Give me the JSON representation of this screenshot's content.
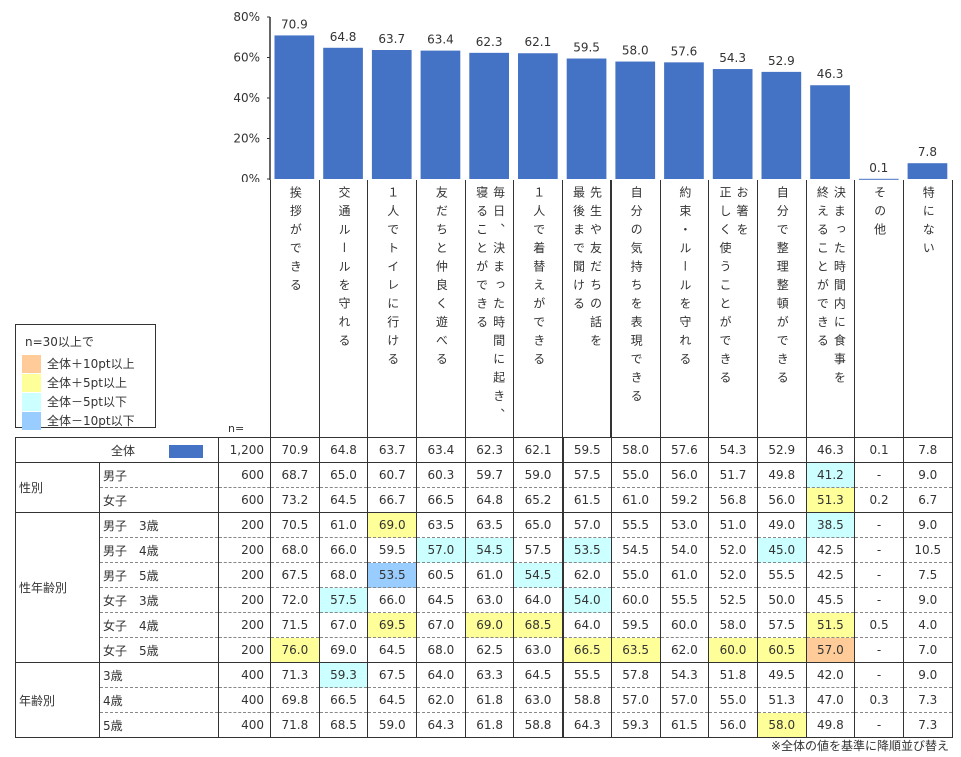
{
  "colors": {
    "bar": "#4472C4",
    "plus10": "#FFCC99",
    "plus5": "#FFFF99",
    "minus5": "#CCFFFF",
    "minus10": "#99CCFF"
  },
  "legend": {
    "title": "n=30以上で",
    "items": [
      {
        "label": "全体＋10pt以上",
        "key": "o"
      },
      {
        "label": "全体＋5pt以上",
        "key": "y"
      },
      {
        "label": "全体－5pt以下",
        "key": "c"
      },
      {
        "label": "全体－10pt以下",
        "key": "b"
      }
    ]
  },
  "n_label": "n=",
  "chart_data": {
    "type": "bar",
    "ylim": [
      0,
      80
    ],
    "yticks": [
      "0%",
      "20%",
      "40%",
      "60%",
      "80%"
    ],
    "categories": [
      [
        "挨拶ができる"
      ],
      [
        "交通ルールを守れる"
      ],
      [
        "１人でトイレに行ける"
      ],
      [
        "友だちと仲良く遊べる"
      ],
      [
        "毎日、決まった時間に起き、",
        "寝ることができる"
      ],
      [
        "１人で着替えができる"
      ],
      [
        "先生や友だちの話を",
        "最後まで聞ける"
      ],
      [
        "自分の気持ちを表現できる"
      ],
      [
        "約束・ルールを守れる"
      ],
      [
        "お箸を",
        "正しく使うことができる"
      ],
      [
        "自分で整理整頓ができる"
      ],
      [
        "決まった時間内に食事を",
        "終えることができる"
      ],
      [
        "その他"
      ],
      [
        "特にない"
      ]
    ],
    "values": [
      70.9,
      64.8,
      63.7,
      63.4,
      62.3,
      62.1,
      59.5,
      58.0,
      57.6,
      54.3,
      52.9,
      46.3,
      0.1,
      7.8
    ],
    "data_labels": [
      "70.9",
      "64.8",
      "63.7",
      "63.4",
      "62.3",
      "62.1",
      "59.5",
      "58.0",
      "57.6",
      "54.3",
      "52.9",
      "46.3",
      "0.1",
      "7.8"
    ]
  },
  "table": {
    "total": {
      "label": "全体",
      "n": "1,200",
      "values": [
        "70.9",
        "64.8",
        "63.7",
        "63.4",
        "62.3",
        "62.1",
        "59.5",
        "58.0",
        "57.6",
        "54.3",
        "52.9",
        "46.3",
        "0.1",
        "7.8"
      ]
    },
    "groups": [
      {
        "label": "性別",
        "rows": [
          {
            "label": "男子",
            "n": "600",
            "values": [
              "68.7",
              "65.0",
              "60.7",
              "60.3",
              "59.7",
              "59.0",
              "57.5",
              "55.0",
              "56.0",
              "51.7",
              "49.8",
              "41.2",
              "-",
              "9.0"
            ],
            "hl": "...........c.."
          },
          {
            "label": "女子",
            "n": "600",
            "values": [
              "73.2",
              "64.5",
              "66.7",
              "66.5",
              "64.8",
              "65.2",
              "61.5",
              "61.0",
              "59.2",
              "56.8",
              "56.0",
              "51.3",
              "0.2",
              "6.7"
            ],
            "hl": "...........y.."
          }
        ]
      },
      {
        "label": "性年齢別",
        "rows": [
          {
            "label": "男子　3歳",
            "n": "200",
            "values": [
              "70.5",
              "61.0",
              "69.0",
              "63.5",
              "63.5",
              "65.0",
              "57.0",
              "55.5",
              "53.0",
              "51.0",
              "49.0",
              "38.5",
              "-",
              "9.0"
            ],
            "hl": "..y........c.."
          },
          {
            "label": "男子　4歳",
            "n": "200",
            "values": [
              "68.0",
              "66.0",
              "59.5",
              "57.0",
              "54.5",
              "57.5",
              "53.5",
              "54.5",
              "54.0",
              "52.0",
              "45.0",
              "42.5",
              "-",
              "10.5"
            ],
            "hl": "...cc.c...c..."
          },
          {
            "label": "男子　5歳",
            "n": "200",
            "values": [
              "67.5",
              "68.0",
              "53.5",
              "60.5",
              "61.0",
              "54.5",
              "62.0",
              "55.0",
              "61.0",
              "52.0",
              "55.5",
              "42.5",
              "-",
              "7.5"
            ],
            "hl": "..b..c........"
          },
          {
            "label": "女子　3歳",
            "n": "200",
            "values": [
              "72.0",
              "57.5",
              "66.0",
              "64.5",
              "63.0",
              "64.0",
              "54.0",
              "60.0",
              "55.5",
              "52.5",
              "50.0",
              "45.5",
              "-",
              "9.0"
            ],
            "hl": ".c....c......."
          },
          {
            "label": "女子　4歳",
            "n": "200",
            "values": [
              "71.5",
              "67.0",
              "69.5",
              "67.0",
              "69.0",
              "68.5",
              "64.0",
              "59.5",
              "60.0",
              "58.0",
              "57.5",
              "51.5",
              "0.5",
              "4.0"
            ],
            "hl": "..y.yy.....y.."
          },
          {
            "label": "女子　5歳",
            "n": "200",
            "values": [
              "76.0",
              "69.0",
              "64.5",
              "68.0",
              "62.5",
              "63.0",
              "66.5",
              "63.5",
              "62.0",
              "60.0",
              "60.5",
              "57.0",
              "-",
              "7.0"
            ],
            "hl": "y.....yy.yyo.."
          }
        ]
      },
      {
        "label": "年齢別",
        "rows": [
          {
            "label": "3歳",
            "n": "400",
            "values": [
              "71.3",
              "59.3",
              "67.5",
              "64.0",
              "63.3",
              "64.5",
              "55.5",
              "57.8",
              "54.3",
              "51.8",
              "49.5",
              "42.0",
              "-",
              "9.0"
            ],
            "hl": ".c............"
          },
          {
            "label": "4歳",
            "n": "400",
            "values": [
              "69.8",
              "66.5",
              "64.5",
              "62.0",
              "61.8",
              "63.0",
              "58.8",
              "57.0",
              "57.0",
              "55.0",
              "51.3",
              "47.0",
              "0.3",
              "7.3"
            ],
            "hl": ".............."
          },
          {
            "label": "5歳",
            "n": "400",
            "values": [
              "71.8",
              "68.5",
              "59.0",
              "64.3",
              "61.8",
              "58.8",
              "64.3",
              "59.3",
              "61.5",
              "56.0",
              "58.0",
              "49.8",
              "-",
              "7.3"
            ],
            "hl": "..........y..."
          }
        ]
      }
    ]
  },
  "note": "※全体の値を基準に降順並び替え"
}
